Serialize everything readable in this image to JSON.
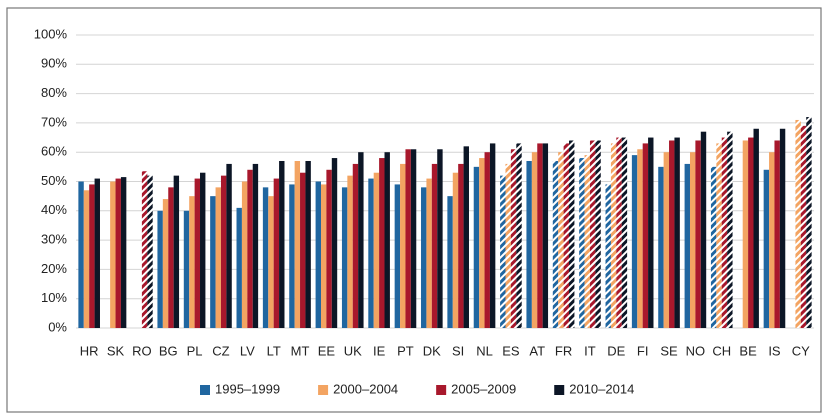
{
  "chart_data": {
    "type": "bar",
    "categories": [
      "HR",
      "SK",
      "RO",
      "BG",
      "PL",
      "CZ",
      "LV",
      "LT",
      "MT",
      "EE",
      "UK",
      "IE",
      "PT",
      "DK",
      "SI",
      "NL",
      "ES",
      "AT",
      "FR",
      "IT",
      "DE",
      "FI",
      "SE",
      "NO",
      "CH",
      "BE",
      "IS",
      "CY"
    ],
    "series": [
      {
        "name": "1995–1999",
        "color": "#2066a0",
        "values": [
          50,
          null,
          null,
          40,
          40,
          45,
          41,
          48,
          49,
          50,
          48,
          51,
          49,
          48,
          45,
          55,
          52,
          57,
          57,
          58,
          49,
          59,
          55,
          56,
          55,
          null,
          54,
          null
        ]
      },
      {
        "name": "2000–2004",
        "color": "#f3a462",
        "values": [
          47,
          50,
          null,
          44,
          45,
          48,
          50,
          45,
          57,
          49,
          52,
          53,
          56,
          51,
          53,
          58,
          56,
          60,
          60,
          59,
          63,
          61,
          60,
          60,
          63,
          64,
          60,
          71
        ]
      },
      {
        "name": "2005–2009",
        "color": "#a8182c",
        "values": [
          49,
          51,
          53.5,
          48,
          51,
          52,
          54,
          51,
          53,
          54,
          56,
          58,
          61,
          56,
          56,
          60,
          61,
          63,
          63,
          64,
          65,
          63,
          64,
          64,
          65,
          65,
          64,
          69
        ]
      },
      {
        "name": "2010–2014",
        "color": "#0c1626",
        "values": [
          51,
          51.5,
          52,
          52,
          53,
          56,
          56,
          57,
          57,
          58,
          60,
          60,
          61,
          61,
          62,
          63,
          63,
          63,
          64,
          64,
          65,
          65,
          65,
          67,
          67,
          68,
          68,
          72
        ]
      }
    ],
    "hatched_categories": [
      "RO",
      "ES",
      "FR",
      "IT",
      "DE",
      "CH",
      "CY"
    ],
    "ylim": [
      0,
      100
    ],
    "yticks": [
      {
        "value": 0,
        "label": "0%"
      },
      {
        "value": 10,
        "label": "10%"
      },
      {
        "value": 20,
        "label": "20%"
      },
      {
        "value": 30,
        "label": "30%"
      },
      {
        "value": 40,
        "label": "40%"
      },
      {
        "value": 50,
        "label": "50%"
      },
      {
        "value": 60,
        "label": "60%"
      },
      {
        "value": 70,
        "label": "70%"
      },
      {
        "value": 80,
        "label": "80%"
      },
      {
        "value": 90,
        "label": "90%"
      },
      {
        "value": 100,
        "label": "100%"
      }
    ],
    "grid": true
  }
}
